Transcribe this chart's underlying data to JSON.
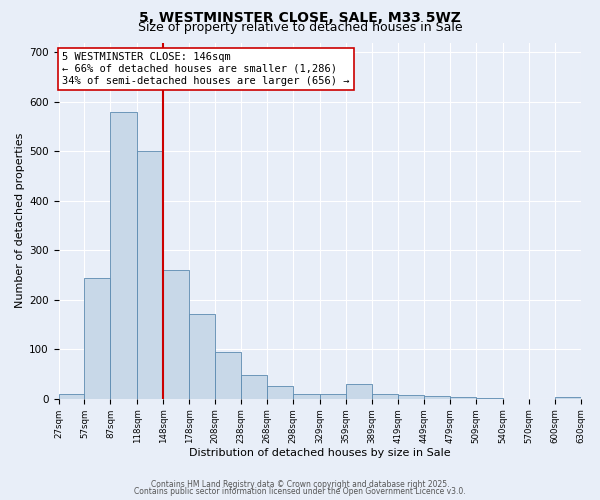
{
  "title_line1": "5, WESTMINSTER CLOSE, SALE, M33 5WZ",
  "title_line2": "Size of property relative to detached houses in Sale",
  "xlabel": "Distribution of detached houses by size in Sale",
  "ylabel": "Number of detached properties",
  "bin_edges": [
    27,
    57,
    87,
    118,
    148,
    178,
    208,
    238,
    268,
    298,
    329,
    359,
    389,
    419,
    449,
    479,
    509,
    540,
    570,
    600,
    630
  ],
  "bar_heights": [
    10,
    245,
    580,
    500,
    260,
    172,
    95,
    48,
    25,
    10,
    10,
    30,
    10,
    8,
    5,
    3,
    2,
    0,
    0,
    3
  ],
  "bar_color": "#c8d8e8",
  "bar_edge_color": "#5b8ab0",
  "vline_x": 148,
  "vline_color": "#cc0000",
  "annotation_text": "5 WESTMINSTER CLOSE: 146sqm\n← 66% of detached houses are smaller (1,286)\n34% of semi-detached houses are larger (656) →",
  "annotation_box_color": "#ffffff",
  "annotation_box_edgecolor": "#cc0000",
  "ylim": [
    0,
    720
  ],
  "yticks": [
    0,
    100,
    200,
    300,
    400,
    500,
    600,
    700
  ],
  "background_color": "#e8eef8",
  "grid_color": "#ffffff",
  "footer_line1": "Contains HM Land Registry data © Crown copyright and database right 2025.",
  "footer_line2": "Contains public sector information licensed under the Open Government Licence v3.0.",
  "tick_labels": [
    "27sqm",
    "57sqm",
    "87sqm",
    "118sqm",
    "148sqm",
    "178sqm",
    "208sqm",
    "238sqm",
    "268sqm",
    "298sqm",
    "329sqm",
    "359sqm",
    "389sqm",
    "419sqm",
    "449sqm",
    "479sqm",
    "509sqm",
    "540sqm",
    "570sqm",
    "600sqm",
    "630sqm"
  ],
  "title_fontsize": 10,
  "subtitle_fontsize": 9,
  "annotation_fontsize": 7.5
}
